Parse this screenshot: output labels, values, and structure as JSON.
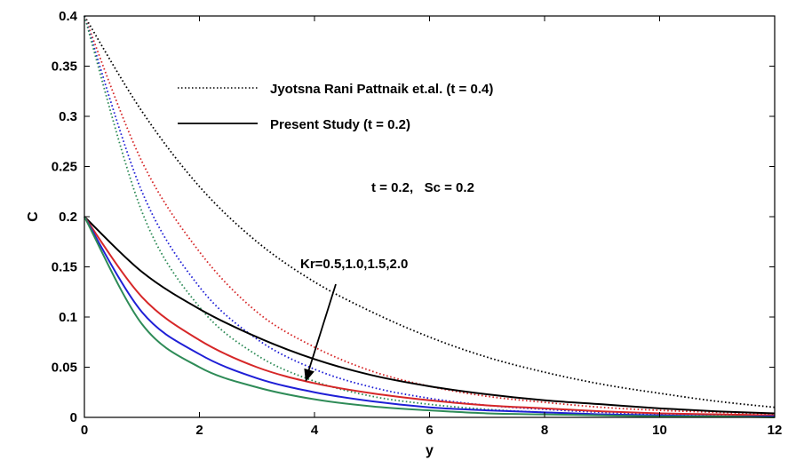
{
  "chart_data": {
    "type": "line",
    "title": "",
    "xlabel": "y",
    "ylabel": "C",
    "xlim": [
      0,
      12
    ],
    "ylim": [
      0,
      0.4
    ],
    "grid": false,
    "x_ticks": [
      0,
      2,
      4,
      6,
      8,
      10,
      12
    ],
    "y_ticks": [
      0,
      0.05,
      0.1,
      0.15,
      0.2,
      0.25,
      0.3,
      0.35,
      0.4
    ],
    "x_tick_labels": [
      "0",
      "2",
      "4",
      "6",
      "8",
      "10",
      "12"
    ],
    "y_tick_labels": [
      "0",
      "0.05",
      "0.1",
      "0.15",
      "0.2",
      "0.25",
      "0.3",
      "0.35",
      "0.4"
    ],
    "legend": {
      "placement": "top-center",
      "entries": [
        {
          "label": "Jyotsna Rani Pattnaik et.al. (t = 0.4)",
          "style": "dotted",
          "color": "#000000"
        },
        {
          "label": "Present Study (t = 0.2)",
          "style": "solid",
          "color": "#000000"
        }
      ]
    },
    "annotations": {
      "params": "t = 0.2,   Sc = 0.2",
      "arrow_label": "Kr=0.5,1.0,1.5,2.0"
    },
    "series": [
      {
        "style": "dotted",
        "color": "#000000",
        "x": [
          0,
          1,
          2,
          3,
          4,
          5,
          6,
          7,
          8,
          9,
          10,
          11,
          12
        ],
        "y": [
          0.4,
          0.305,
          0.23,
          0.175,
          0.135,
          0.105,
          0.08,
          0.06,
          0.045,
          0.033,
          0.024,
          0.016,
          0.01
        ]
      },
      {
        "style": "dotted",
        "color": "#d62728",
        "x": [
          0,
          1,
          2,
          3,
          4,
          5,
          6,
          7,
          8,
          9,
          10,
          11,
          12
        ],
        "y": [
          0.4,
          0.255,
          0.165,
          0.105,
          0.07,
          0.046,
          0.031,
          0.021,
          0.015,
          0.01,
          0.007,
          0.005,
          0.003
        ]
      },
      {
        "style": "dotted",
        "color": "#1f1fd6",
        "x": [
          0,
          1,
          2,
          3,
          4,
          5,
          6,
          7,
          8,
          9,
          10,
          11,
          12
        ],
        "y": [
          0.4,
          0.225,
          0.13,
          0.078,
          0.048,
          0.03,
          0.019,
          0.012,
          0.008,
          0.005,
          0.003,
          0.002,
          0.001
        ]
      },
      {
        "style": "dotted",
        "color": "#2e8b57",
        "x": [
          0,
          1,
          2,
          3,
          4,
          5,
          6,
          7,
          8,
          9,
          10,
          11,
          12
        ],
        "y": [
          0.4,
          0.205,
          0.11,
          0.062,
          0.036,
          0.021,
          0.013,
          0.008,
          0.005,
          0.003,
          0.002,
          0.001,
          0.001
        ]
      },
      {
        "style": "solid",
        "color": "#000000",
        "x": [
          0,
          1,
          2,
          3,
          4,
          5,
          6,
          7,
          8,
          9,
          10,
          11,
          12
        ],
        "y": [
          0.2,
          0.145,
          0.108,
          0.08,
          0.058,
          0.042,
          0.031,
          0.023,
          0.017,
          0.013,
          0.009,
          0.006,
          0.004
        ]
      },
      {
        "style": "solid",
        "color": "#d62728",
        "x": [
          0,
          1,
          2,
          3,
          4,
          5,
          6,
          7,
          8,
          9,
          10,
          11,
          12
        ],
        "y": [
          0.2,
          0.12,
          0.077,
          0.05,
          0.034,
          0.024,
          0.017,
          0.012,
          0.009,
          0.006,
          0.004,
          0.003,
          0.002
        ]
      },
      {
        "style": "solid",
        "color": "#1f1fd6",
        "x": [
          0,
          1,
          2,
          3,
          4,
          5,
          6,
          7,
          8,
          9,
          10,
          11,
          12
        ],
        "y": [
          0.2,
          0.105,
          0.063,
          0.039,
          0.025,
          0.016,
          0.01,
          0.007,
          0.005,
          0.003,
          0.002,
          0.001,
          0.001
        ]
      },
      {
        "style": "solid",
        "color": "#2e8b57",
        "x": [
          0,
          1,
          2,
          3,
          4,
          5,
          6,
          7,
          8,
          9,
          10,
          11,
          12
        ],
        "y": [
          0.2,
          0.093,
          0.05,
          0.03,
          0.018,
          0.011,
          0.007,
          0.004,
          0.003,
          0.002,
          0.001,
          0.001,
          0.0
        ]
      }
    ]
  }
}
